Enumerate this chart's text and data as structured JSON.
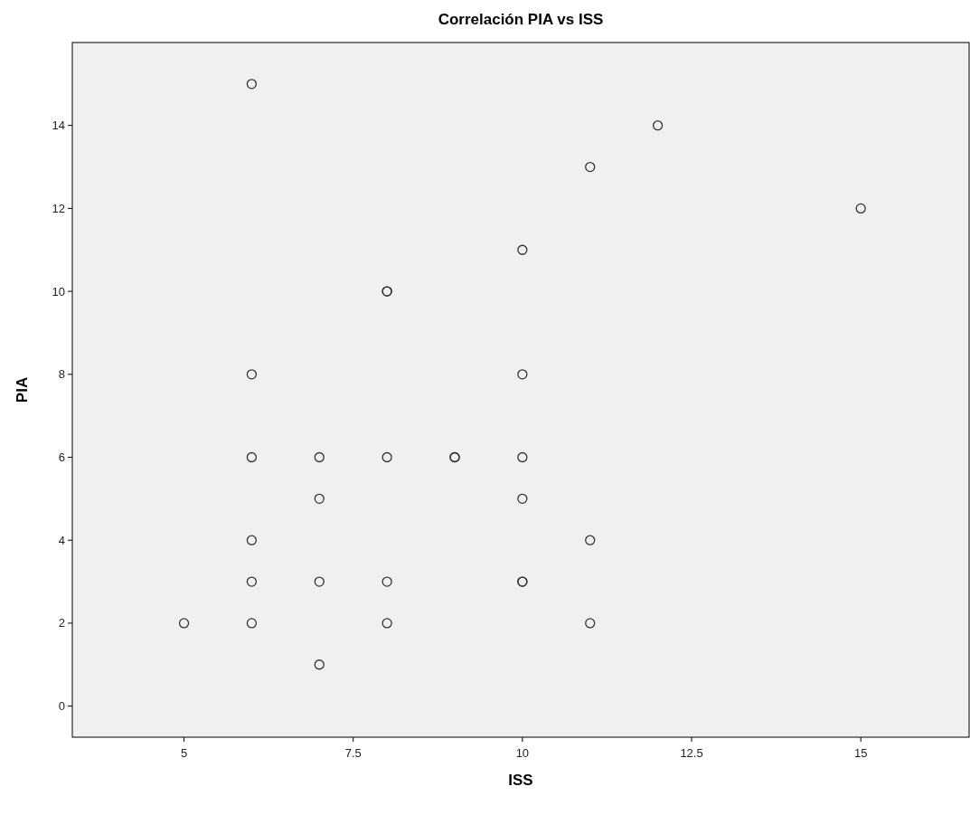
{
  "chart_data": {
    "type": "scatter",
    "title": "Correlación PIA vs ISS",
    "xlabel": "ISS",
    "ylabel": "PIA",
    "x": [
      6,
      12,
      11,
      15,
      10,
      8,
      8,
      6,
      10,
      6,
      7,
      8,
      9,
      9,
      10,
      7,
      10,
      6,
      11,
      6,
      7,
      8,
      10,
      10,
      5,
      6,
      8,
      11,
      7
    ],
    "values": [
      15,
      14,
      13,
      12,
      11,
      10,
      10,
      8,
      8,
      6,
      6,
      6,
      6,
      6,
      6,
      5,
      5,
      4,
      4,
      3,
      3,
      3,
      3,
      3,
      2,
      2,
      2,
      2,
      1
    ],
    "color": "#333333",
    "marker": "circle",
    "grid": false,
    "xlim": [
      3.35,
      16.6
    ],
    "xticks": [
      5,
      7.5,
      10,
      12.5,
      15
    ],
    "ylim": [
      -0.75,
      16
    ],
    "yticks": [
      0,
      2,
      4,
      6,
      8,
      10,
      12,
      14
    ]
  }
}
